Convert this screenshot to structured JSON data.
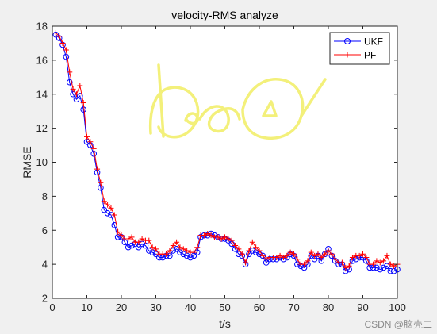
{
  "chart_data": {
    "type": "line",
    "title": "velocity-RMS analyze",
    "xlabel": "t/s",
    "ylabel": "RMSE",
    "xlim": [
      0,
      100
    ],
    "ylim": [
      2,
      18
    ],
    "xticks": [
      0,
      10,
      20,
      30,
      40,
      50,
      60,
      70,
      80,
      90,
      100
    ],
    "yticks": [
      2,
      4,
      6,
      8,
      10,
      12,
      14,
      16,
      18
    ],
    "grid": false,
    "legend_position": "top-right",
    "x": [
      1,
      2,
      3,
      4,
      5,
      6,
      7,
      8,
      9,
      10,
      11,
      12,
      13,
      14,
      15,
      16,
      17,
      18,
      19,
      20,
      21,
      22,
      23,
      24,
      25,
      26,
      27,
      28,
      29,
      30,
      31,
      32,
      33,
      34,
      35,
      36,
      37,
      38,
      39,
      40,
      41,
      42,
      43,
      44,
      45,
      46,
      47,
      48,
      49,
      50,
      51,
      52,
      53,
      54,
      55,
      56,
      57,
      58,
      59,
      60,
      61,
      62,
      63,
      64,
      65,
      66,
      67,
      68,
      69,
      70,
      71,
      72,
      73,
      74,
      75,
      76,
      77,
      78,
      79,
      80,
      81,
      82,
      83,
      84,
      85,
      86,
      87,
      88,
      89,
      90,
      91,
      92,
      93,
      94,
      95,
      96,
      97,
      98,
      99,
      100
    ],
    "series": [
      {
        "name": "UKF",
        "color": "#0000ff",
        "marker": "circle",
        "values": [
          17.5,
          17.3,
          16.9,
          16.2,
          14.7,
          14.0,
          13.7,
          13.9,
          13.1,
          11.2,
          11.0,
          10.5,
          9.4,
          8.5,
          7.2,
          7.0,
          6.9,
          6.3,
          5.6,
          5.6,
          5.3,
          5.0,
          5.1,
          5.2,
          5.0,
          5.2,
          5.1,
          4.8,
          4.7,
          4.6,
          4.4,
          4.4,
          4.5,
          4.5,
          4.8,
          4.9,
          4.7,
          4.6,
          4.5,
          4.4,
          4.5,
          4.7,
          5.6,
          5.7,
          5.7,
          5.8,
          5.7,
          5.6,
          5.5,
          5.5,
          5.4,
          5.2,
          4.9,
          4.6,
          4.5,
          4.0,
          4.6,
          4.8,
          4.7,
          4.6,
          4.5,
          4.1,
          4.3,
          4.3,
          4.3,
          4.4,
          4.3,
          4.4,
          4.6,
          4.5,
          4.0,
          3.9,
          3.8,
          4.0,
          4.5,
          4.3,
          4.5,
          4.2,
          4.6,
          4.9,
          4.5,
          4.2,
          4.0,
          4.0,
          3.6,
          3.7,
          4.2,
          4.3,
          4.4,
          4.4,
          4.2,
          3.8,
          3.8,
          3.8,
          3.7,
          3.8,
          3.9,
          3.6,
          3.6,
          3.7
        ]
      },
      {
        "name": "PF",
        "color": "#ff0000",
        "marker": "plus",
        "values": [
          17.6,
          17.4,
          17.0,
          16.6,
          15.3,
          14.3,
          14.0,
          14.5,
          13.5,
          11.5,
          11.2,
          10.8,
          9.6,
          8.8,
          7.7,
          7.5,
          7.3,
          6.9,
          5.9,
          5.7,
          5.5,
          5.5,
          5.6,
          5.3,
          5.3,
          5.5,
          5.4,
          5.4,
          5.0,
          4.9,
          4.6,
          4.6,
          4.6,
          4.8,
          5.1,
          5.3,
          5.0,
          4.9,
          4.8,
          4.7,
          4.7,
          5.0,
          5.7,
          5.7,
          5.8,
          5.7,
          5.6,
          5.6,
          5.5,
          5.6,
          5.5,
          5.4,
          5.1,
          4.9,
          4.6,
          4.1,
          4.8,
          5.3,
          5.0,
          4.8,
          4.5,
          4.3,
          4.4,
          4.4,
          4.4,
          4.5,
          4.4,
          4.5,
          4.7,
          4.6,
          4.3,
          4.0,
          4.0,
          4.2,
          4.7,
          4.5,
          4.6,
          4.4,
          4.6,
          4.8,
          4.6,
          4.3,
          4.1,
          4.1,
          3.8,
          3.9,
          4.4,
          4.5,
          4.5,
          4.6,
          4.4,
          4.0,
          4.0,
          4.2,
          4.1,
          4.2,
          4.5,
          4.0,
          3.9,
          4.0
        ]
      }
    ]
  },
  "watermark": "CSDN @脑壳二"
}
